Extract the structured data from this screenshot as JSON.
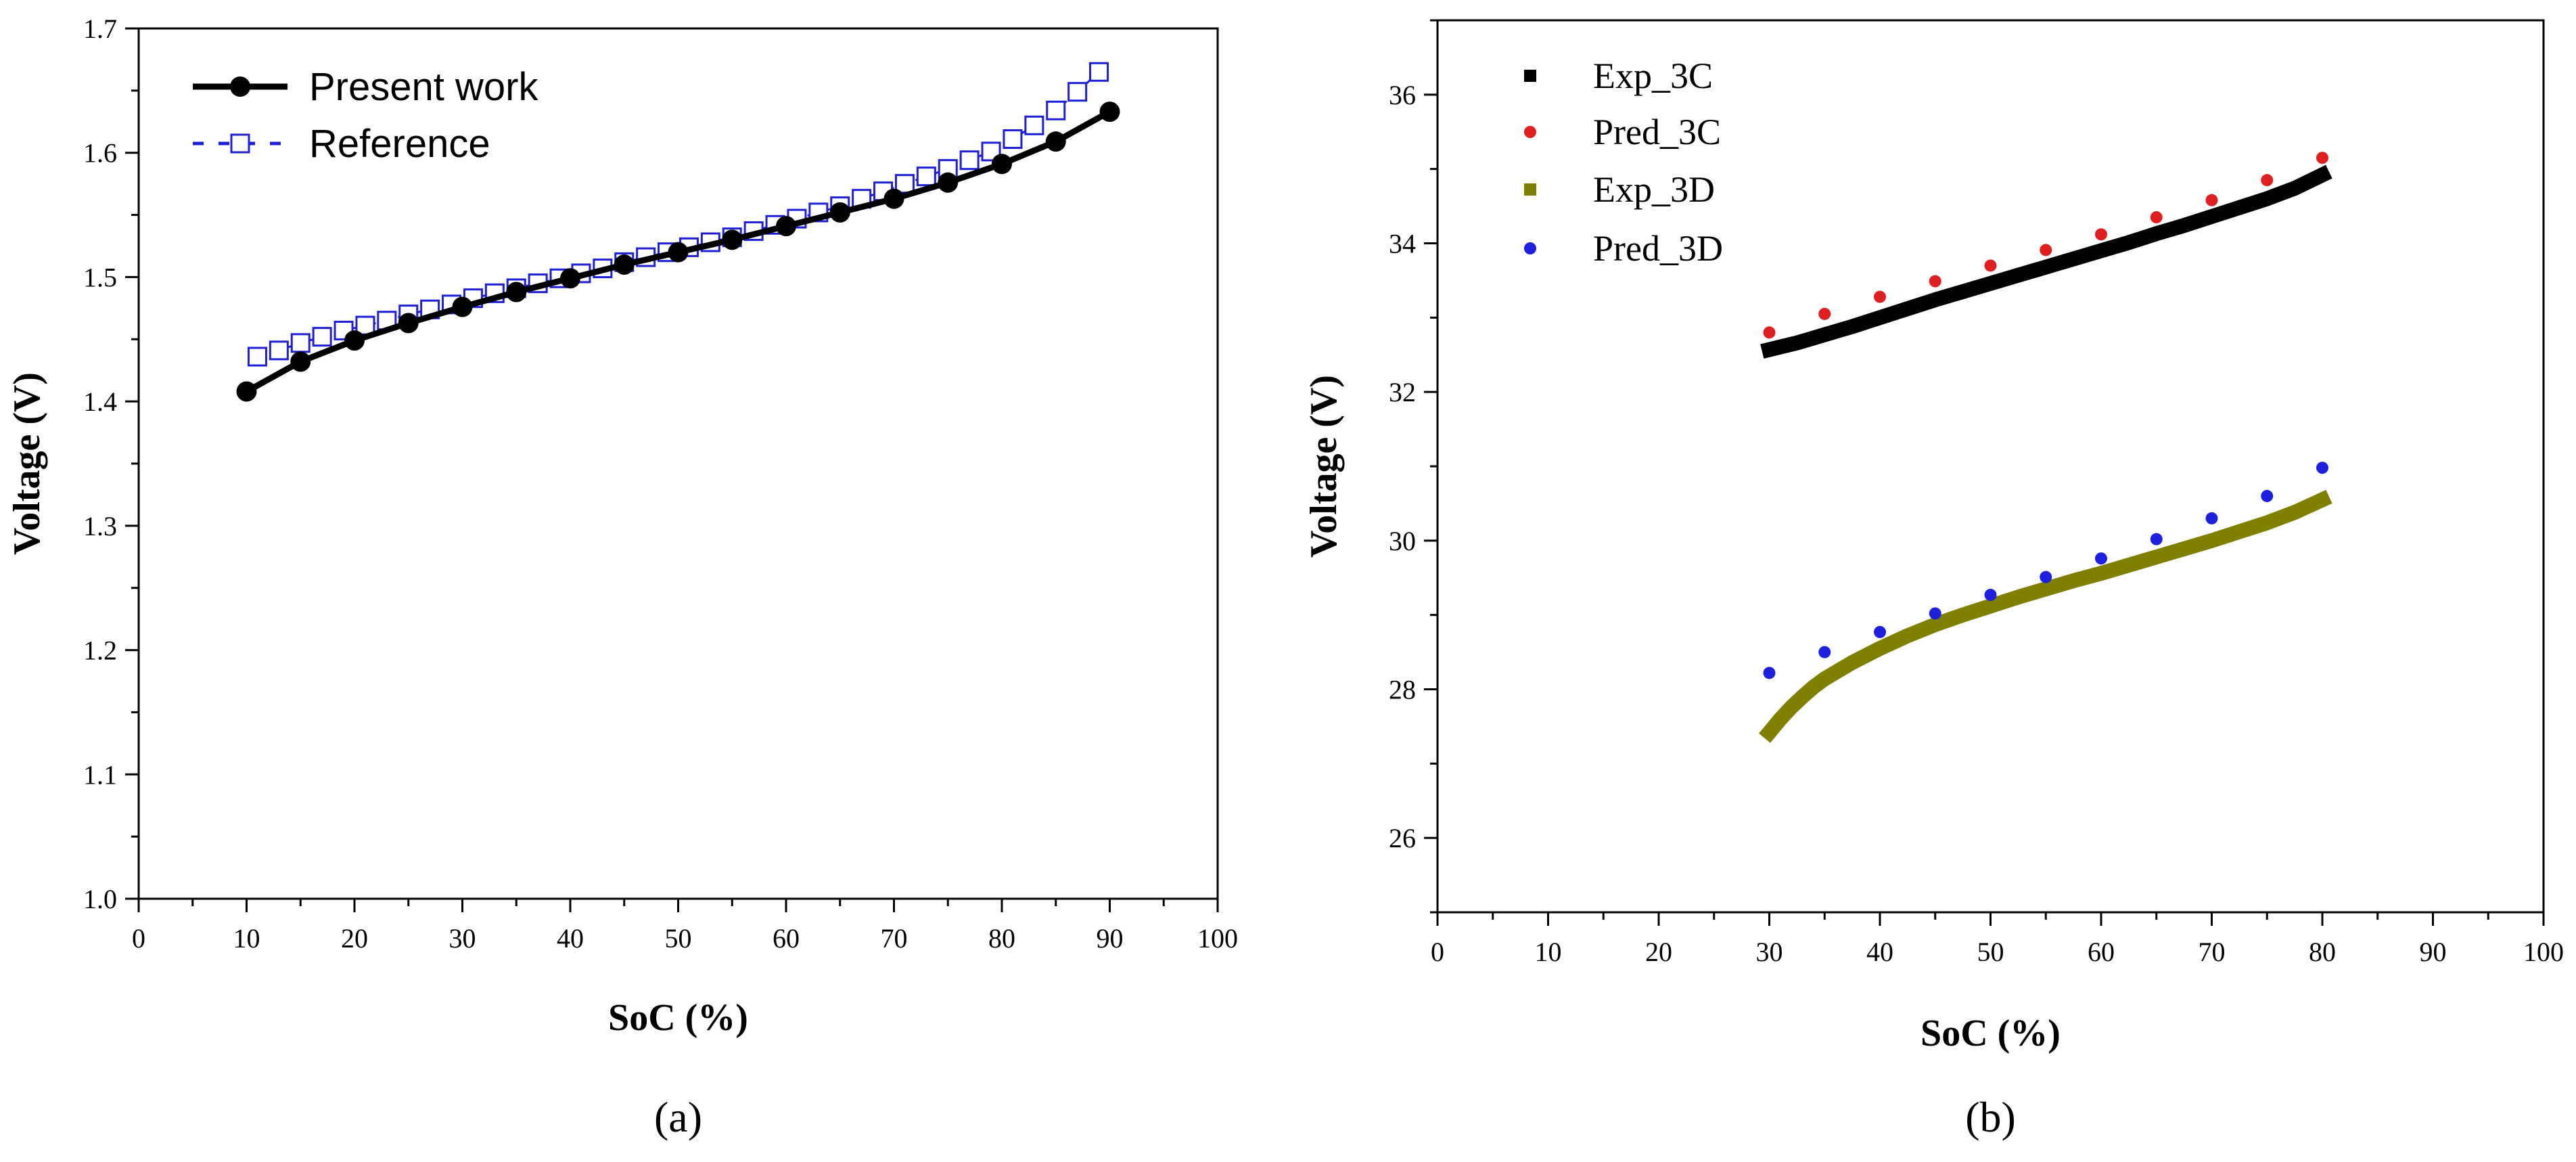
{
  "chart_data": [
    {
      "type": "line",
      "panel_label": "(a)",
      "xlabel": "SoC (%)",
      "ylabel": "Voltage (V)",
      "xlim": [
        0,
        100
      ],
      "ylim": [
        1.0,
        1.7
      ],
      "xticks": [
        "0",
        "10",
        "20",
        "30",
        "40",
        "50",
        "60",
        "70",
        "80",
        "90",
        "100"
      ],
      "yticks": [
        "1.0",
        "1.1",
        "1.2",
        "1.3",
        "1.4",
        "1.5",
        "1.6",
        "1.7"
      ],
      "legend_position": "top-left",
      "series": [
        {
          "name": "Present work",
          "color": "#000000",
          "marker": "filled-circle",
          "line": "solid",
          "x": [
            10,
            15,
            20,
            25,
            30,
            35,
            40,
            45,
            50,
            55,
            60,
            65,
            70,
            75,
            80,
            85,
            90
          ],
          "y": [
            1.408,
            1.432,
            1.449,
            1.463,
            1.476,
            1.488,
            1.499,
            1.51,
            1.52,
            1.53,
            1.541,
            1.552,
            1.563,
            1.576,
            1.591,
            1.609,
            1.633
          ]
        },
        {
          "name": "Reference",
          "color": "#1f1fd6",
          "marker": "open-square",
          "line": "dashed",
          "x": [
            11,
            13,
            15,
            17,
            19,
            21,
            23,
            25,
            27,
            29,
            31,
            33,
            35,
            37,
            39,
            41,
            43,
            45,
            47,
            49,
            51,
            53,
            55,
            57,
            59,
            61,
            63,
            65,
            67,
            69,
            71,
            73,
            75,
            77,
            79,
            81,
            83,
            85,
            87,
            89
          ],
          "y": [
            1.436,
            1.441,
            1.447,
            1.452,
            1.457,
            1.461,
            1.465,
            1.47,
            1.474,
            1.478,
            1.483,
            1.487,
            1.491,
            1.495,
            1.499,
            1.503,
            1.507,
            1.512,
            1.516,
            1.52,
            1.524,
            1.528,
            1.532,
            1.537,
            1.542,
            1.547,
            1.552,
            1.557,
            1.563,
            1.569,
            1.575,
            1.581,
            1.587,
            1.594,
            1.601,
            1.611,
            1.622,
            1.634,
            1.649,
            1.665
          ]
        }
      ]
    },
    {
      "type": "scatter",
      "panel_label": "(b)",
      "xlabel": "SoC (%)",
      "ylabel": "Voltage (V)",
      "xlim": [
        0,
        100
      ],
      "ylim": [
        25,
        37
      ],
      "xticks": [
        "0",
        "10",
        "20",
        "30",
        "40",
        "50",
        "60",
        "70",
        "80",
        "90",
        "100"
      ],
      "yticks": [
        "26",
        "28",
        "30",
        "32",
        "34",
        "36"
      ],
      "legend_position": "top-left",
      "series": [
        {
          "name": "Exp_3C",
          "color": "#000000",
          "style": "dense-thick-line",
          "x": [
            30,
            32.5,
            35,
            37.5,
            40,
            42.5,
            45,
            47.5,
            50,
            52.5,
            55,
            57.5,
            60,
            62.5,
            65,
            67.5,
            70,
            72.5,
            75,
            77.5,
            80
          ],
          "y": [
            32.57,
            32.66,
            32.77,
            32.88,
            33.0,
            33.12,
            33.24,
            33.35,
            33.46,
            33.57,
            33.68,
            33.79,
            33.9,
            34.01,
            34.13,
            34.24,
            34.36,
            34.48,
            34.6,
            34.74,
            34.92
          ]
        },
        {
          "name": "Pred_3C",
          "color": "#e02020",
          "style": "dots",
          "x": [
            30,
            35,
            40,
            45,
            50,
            55,
            60,
            65,
            70,
            75,
            80
          ],
          "y": [
            32.8,
            33.05,
            33.28,
            33.49,
            33.7,
            33.91,
            34.12,
            34.35,
            34.58,
            34.85,
            35.15
          ]
        },
        {
          "name": "Exp_3D",
          "color": "#808000",
          "style": "dense-thick-line",
          "x": [
            30,
            31,
            32,
            33,
            34,
            35,
            37.5,
            40,
            42.5,
            45,
            47.5,
            50,
            52.5,
            55,
            57.5,
            60,
            62.5,
            65,
            67.5,
            70,
            72.5,
            75,
            77.5,
            80
          ],
          "y": [
            27.42,
            27.6,
            27.76,
            27.9,
            28.03,
            28.14,
            28.36,
            28.55,
            28.72,
            28.87,
            29.0,
            29.12,
            29.24,
            29.35,
            29.46,
            29.56,
            29.67,
            29.78,
            29.89,
            30.0,
            30.12,
            30.24,
            30.38,
            30.55
          ]
        },
        {
          "name": "Pred_3D",
          "color": "#1f1fe0",
          "style": "dots",
          "x": [
            30,
            35,
            40,
            45,
            50,
            55,
            60,
            65,
            70,
            75,
            80
          ],
          "y": [
            28.22,
            28.5,
            28.77,
            29.02,
            29.27,
            29.51,
            29.76,
            30.02,
            30.3,
            30.6,
            30.98
          ]
        }
      ]
    }
  ]
}
